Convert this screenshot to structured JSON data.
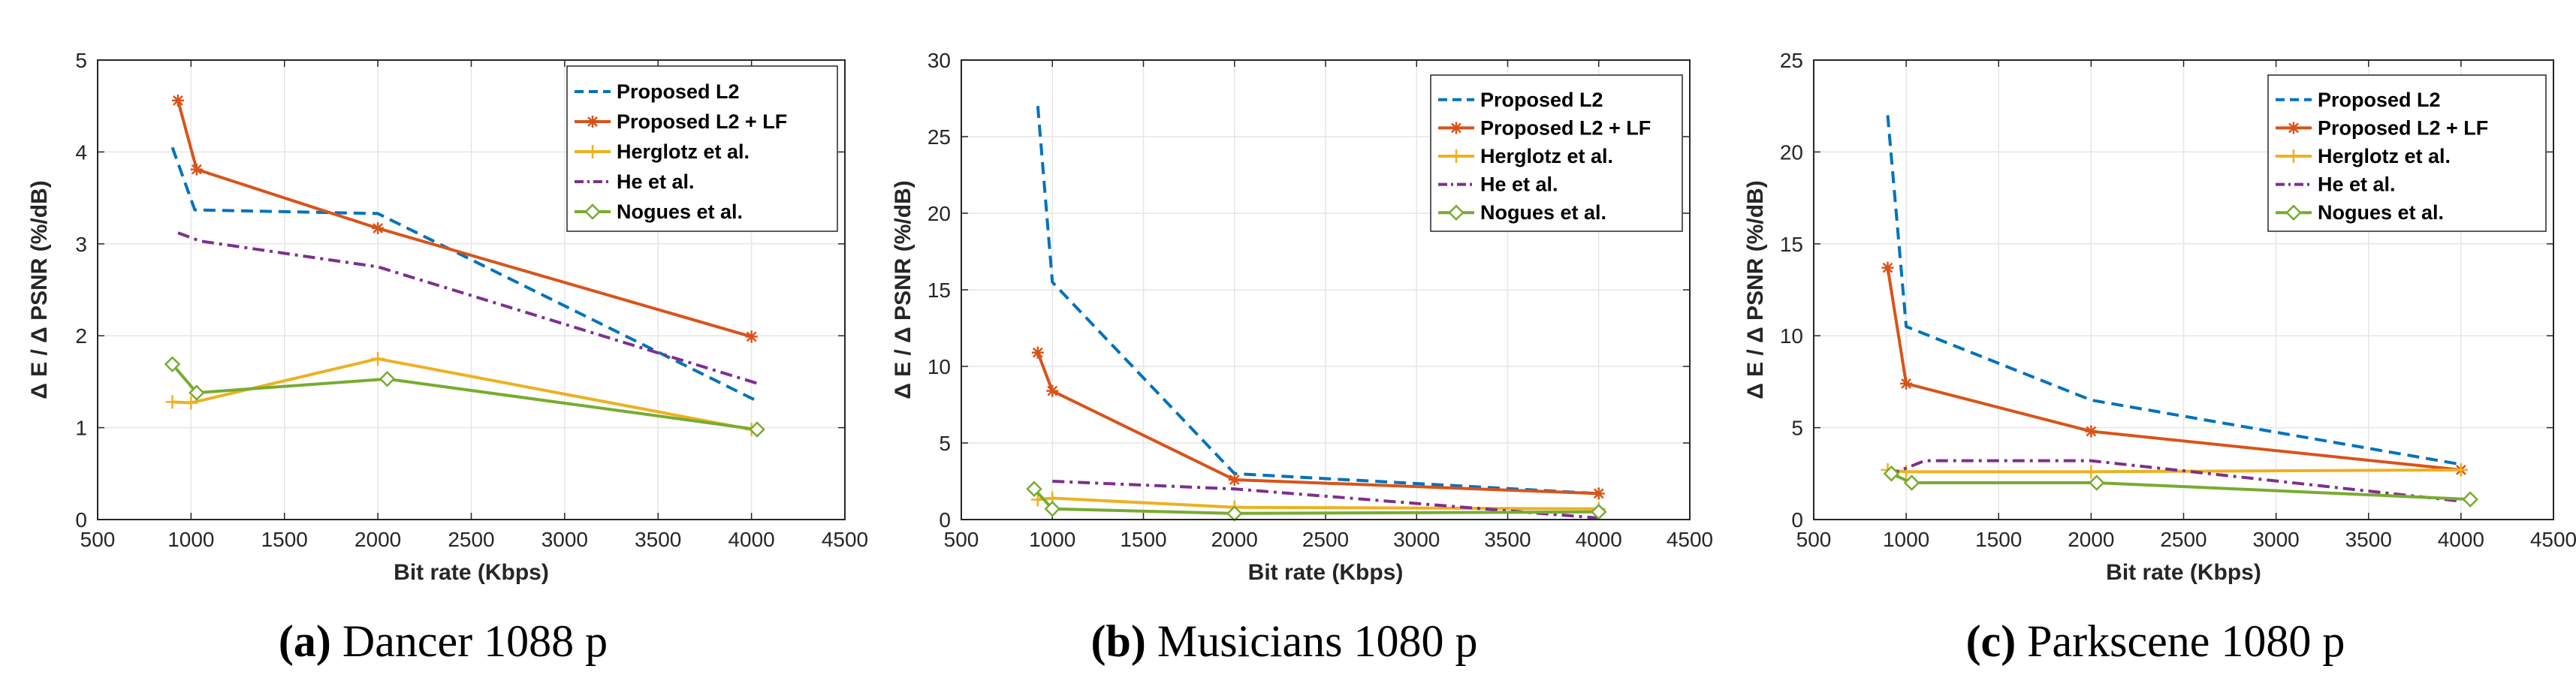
{
  "figure": {
    "colors": {
      "proposed_l2": "#0072BD",
      "proposed_l2_lf": "#D95319",
      "herglotz": "#EDB120",
      "he": "#7E2F8E",
      "nogues": "#77AC30",
      "grid": "#e6e6e6",
      "axis": "#262626"
    }
  },
  "chart_data": [
    {
      "type": "line",
      "caption_letter": "(a)",
      "caption_text": "Dancer 1088 p",
      "title": "",
      "xlabel": "Bit rate (Kbps)",
      "ylabel": "Δ E / Δ PSNR (%/dB)",
      "xlim": [
        500,
        4500
      ],
      "ylim": [
        0,
        5
      ],
      "xticks": [
        500,
        1000,
        1500,
        2000,
        2500,
        3000,
        3500,
        4000,
        4500
      ],
      "yticks": [
        0,
        1,
        2,
        3,
        4,
        5
      ],
      "grid": true,
      "legend_position": "top-right",
      "series": [
        {
          "name": "Proposed L2",
          "style": "dashed",
          "marker": "none",
          "x": [
            900,
            1020,
            2000,
            4040
          ],
          "y": [
            4.05,
            3.37,
            3.33,
            1.28
          ]
        },
        {
          "name": "Proposed L2 + LF",
          "style": "solid",
          "marker": "star",
          "x": [
            930,
            1030,
            2000,
            4000
          ],
          "y": [
            4.56,
            3.81,
            3.17,
            1.99
          ]
        },
        {
          "name": "Herglotz et al.",
          "style": "solid",
          "marker": "plus",
          "x": [
            900,
            1000,
            2000,
            4000
          ],
          "y": [
            1.28,
            1.27,
            1.75,
            0.98
          ]
        },
        {
          "name": "He et al.",
          "style": "dashdot",
          "marker": "none",
          "x": [
            930,
            1050,
            2000,
            4050
          ],
          "y": [
            3.12,
            3.03,
            2.75,
            1.47
          ]
        },
        {
          "name": "Nogues et al.",
          "style": "solid",
          "marker": "diamond",
          "x": [
            900,
            1030,
            2050,
            4030
          ],
          "y": [
            1.69,
            1.38,
            1.53,
            0.98
          ]
        }
      ]
    },
    {
      "type": "line",
      "caption_letter": "(b)",
      "caption_text": "Musicians 1080 p",
      "title": "",
      "xlabel": "Bit rate (Kbps)",
      "ylabel": "Δ E / Δ PSNR (%/dB)",
      "xlim": [
        500,
        4500
      ],
      "ylim": [
        0,
        30
      ],
      "xticks": [
        500,
        1000,
        1500,
        2000,
        2500,
        3000,
        3500,
        4000,
        4500
      ],
      "yticks": [
        0,
        5,
        10,
        15,
        20,
        25,
        30
      ],
      "grid": true,
      "legend_position": "top-right",
      "series": [
        {
          "name": "Proposed L2",
          "style": "dashed",
          "marker": "none",
          "x": [
            920,
            1000,
            2000,
            4000
          ],
          "y": [
            27.0,
            15.5,
            3.0,
            1.7
          ]
        },
        {
          "name": "Proposed L2 + LF",
          "style": "solid",
          "marker": "star",
          "x": [
            920,
            1000,
            2000,
            4000
          ],
          "y": [
            10.9,
            8.4,
            2.6,
            1.7
          ]
        },
        {
          "name": "Herglotz et al.",
          "style": "solid",
          "marker": "plus",
          "x": [
            920,
            1000,
            2000,
            4000
          ],
          "y": [
            1.3,
            1.4,
            0.8,
            0.7
          ]
        },
        {
          "name": "He et al.",
          "style": "dashdot",
          "marker": "none",
          "x": [
            1000,
            2000,
            4000
          ],
          "y": [
            2.5,
            2.0,
            0.1
          ]
        },
        {
          "name": "Nogues et al.",
          "style": "solid",
          "marker": "diamond",
          "x": [
            900,
            1000,
            2000,
            4000
          ],
          "y": [
            2.0,
            0.7,
            0.4,
            0.5
          ]
        }
      ]
    },
    {
      "type": "line",
      "caption_letter": "(c)",
      "caption_text": "Parkscene 1080 p",
      "title": "",
      "xlabel": "Bit rate (Kbps)",
      "ylabel": "Δ E / Δ PSNR (%/dB)",
      "xlim": [
        500,
        4500
      ],
      "ylim": [
        0,
        25
      ],
      "xticks": [
        500,
        1000,
        1500,
        2000,
        2500,
        3000,
        3500,
        4000,
        4500
      ],
      "yticks": [
        0,
        5,
        10,
        15,
        20,
        25
      ],
      "grid": true,
      "legend_position": "top-right",
      "series": [
        {
          "name": "Proposed L2",
          "style": "dashed",
          "marker": "none",
          "x": [
            900,
            1000,
            2000,
            4000
          ],
          "y": [
            22.0,
            10.5,
            6.5,
            3.0
          ]
        },
        {
          "name": "Proposed L2 + LF",
          "style": "solid",
          "marker": "star",
          "x": [
            900,
            1000,
            2000,
            4000
          ],
          "y": [
            13.7,
            7.4,
            4.8,
            2.7
          ]
        },
        {
          "name": "Herglotz et al.",
          "style": "solid",
          "marker": "plus",
          "x": [
            900,
            1000,
            2000,
            4000
          ],
          "y": [
            2.7,
            2.6,
            2.6,
            2.7
          ]
        },
        {
          "name": "He et al.",
          "style": "dashdot",
          "marker": "none",
          "x": [
            900,
            1100,
            2000,
            4000
          ],
          "y": [
            2.4,
            3.2,
            3.2,
            1.0
          ]
        },
        {
          "name": "Nogues et al.",
          "style": "solid",
          "marker": "diamond",
          "x": [
            920,
            1030,
            2030,
            4050
          ],
          "y": [
            2.5,
            2.0,
            2.0,
            1.1
          ]
        }
      ]
    }
  ]
}
